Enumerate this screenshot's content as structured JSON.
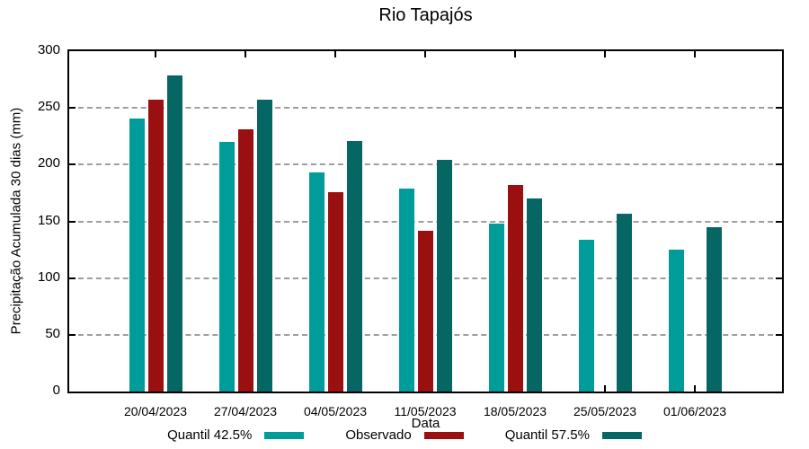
{
  "chart_data": {
    "type": "bar",
    "title": "Rio Tapajós",
    "xlabel": "Data",
    "ylabel": "Precipitação Acumulada 30 dias (mm)",
    "categories": [
      "20/04/2023",
      "27/04/2023",
      "04/05/2023",
      "11/05/2023",
      "18/05/2023",
      "25/05/2023",
      "01/06/2023"
    ],
    "series": [
      {
        "name": "Quantil 42.5%",
        "color": "#009C99",
        "values": [
          241,
          220,
          193,
          179,
          148,
          134,
          125
        ]
      },
      {
        "name": "Observado",
        "color": "#9A1010",
        "values": [
          257,
          231,
          176,
          142,
          182,
          null,
          null
        ]
      },
      {
        "name": "Quantil 57.5%",
        "color": "#066663",
        "values": [
          279,
          257,
          221,
          204,
          170,
          157,
          145
        ]
      }
    ],
    "ylim": [
      0,
      300
    ],
    "yticks": [
      0,
      50,
      100,
      150,
      200,
      250,
      300
    ],
    "grid": "horizontal-dashed",
    "legend_position": "bottom",
    "frame_color": "#000000",
    "gridline_color": "#9e9e9e",
    "background_color": "#ffffff"
  }
}
